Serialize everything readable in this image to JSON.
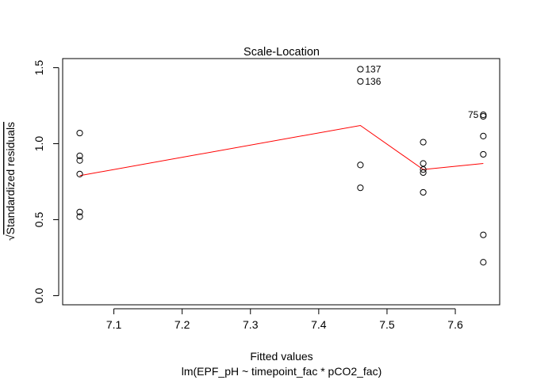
{
  "chart_data": {
    "type": "scatter",
    "title": "Scale-Location",
    "xlabel": "Fitted values",
    "subtitle": "lm(EPF_pH ~ timepoint_fac * pCO2_fac)",
    "ylabel_radical": "√",
    "ylabel": "Standardized residuals",
    "xlim": [
      7.025,
      7.665
    ],
    "ylim": [
      -0.06,
      1.56
    ],
    "xticks": [
      7.1,
      7.2,
      7.3,
      7.4,
      7.5,
      7.6
    ],
    "yticks": [
      0.0,
      0.5,
      1.0,
      1.5
    ],
    "points": [
      {
        "x": 7.05,
        "y": 1.07
      },
      {
        "x": 7.05,
        "y": 0.92
      },
      {
        "x": 7.05,
        "y": 0.89
      },
      {
        "x": 7.05,
        "y": 0.8
      },
      {
        "x": 7.05,
        "y": 0.55
      },
      {
        "x": 7.05,
        "y": 0.52
      },
      {
        "x": 7.461,
        "y": 1.49,
        "label": "137"
      },
      {
        "x": 7.461,
        "y": 1.41,
        "label": "136"
      },
      {
        "x": 7.461,
        "y": 0.86
      },
      {
        "x": 7.461,
        "y": 0.71
      },
      {
        "x": 7.553,
        "y": 1.01
      },
      {
        "x": 7.553,
        "y": 0.87
      },
      {
        "x": 7.553,
        "y": 0.83
      },
      {
        "x": 7.553,
        "y": 0.81
      },
      {
        "x": 7.553,
        "y": 0.68
      },
      {
        "x": 7.641,
        "y": 1.19,
        "label": "75"
      },
      {
        "x": 7.641,
        "y": 1.18
      },
      {
        "x": 7.641,
        "y": 1.05
      },
      {
        "x": 7.641,
        "y": 0.93
      },
      {
        "x": 7.641,
        "y": 0.4
      },
      {
        "x": 7.641,
        "y": 0.22
      }
    ],
    "smooth_line": {
      "color": "#ff0000",
      "x": [
        7.05,
        7.461,
        7.553,
        7.641
      ],
      "y": [
        0.79,
        1.12,
        0.83,
        0.87
      ]
    },
    "grid": false,
    "legend": "none"
  }
}
